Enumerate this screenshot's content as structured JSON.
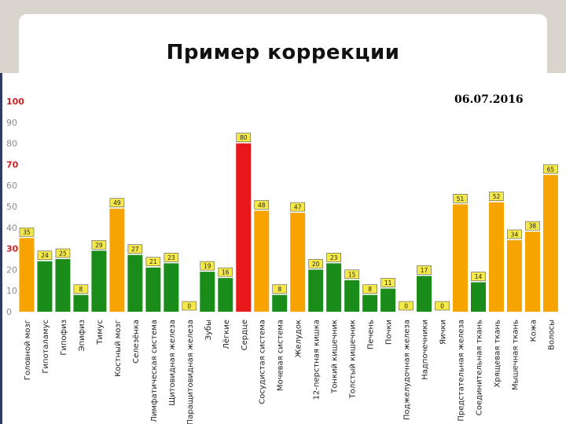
{
  "slide": {
    "title": "Пример коррекции",
    "date": "06.07.2016"
  },
  "colors": {
    "red": "#e8191b",
    "orange": "#f7a400",
    "green": "#1a8c1a",
    "label_bg": "#f5e94a",
    "red_tick": "#cc2222"
  },
  "chart_data": {
    "type": "bar",
    "title": "",
    "xlabel": "",
    "ylabel": "",
    "ylim": [
      0,
      100
    ],
    "yticks": [
      "0",
      "10",
      "20",
      "30",
      "40",
      "50",
      "60",
      "70",
      "80",
      "90",
      "100"
    ],
    "highlight_ticks": [
      "30",
      "70",
      "100"
    ],
    "grid": false,
    "categories": [
      "Головной мозг",
      "Гипоталамус",
      "Гипофиз",
      "Эпифиз",
      "Тимус",
      "Костный мозг",
      "Селезёнка",
      "Лимфатическая система",
      "Щитовидная железа",
      "Паращитовидная железа",
      "Зубы",
      "Лёгкие",
      "Сердце",
      "Сосудистая система",
      "Мочевая система",
      "Желудок",
      "12-перстная кишка",
      "Тонкий кишечник",
      "Толстый кишечник",
      "Печень",
      "Почки",
      "Поджелудочная железа",
      "Надпочечники",
      "Яички",
      "Предстательная железа",
      "Соединительная ткань",
      "Хрящевая ткань",
      "Мышечная ткань",
      "Кожа",
      "Волосы"
    ],
    "values": [
      35,
      24,
      25,
      8,
      29,
      49,
      27,
      21,
      23,
      0,
      19,
      16,
      80,
      48,
      8,
      47,
      20,
      23,
      15,
      8,
      11,
      0,
      17,
      0,
      51,
      14,
      52,
      34,
      38,
      65
    ],
    "value_labels": [
      "35",
      "24",
      "25",
      "8",
      "29",
      "49",
      "27",
      "21",
      "23",
      "0",
      "19",
      "16",
      "80",
      "48",
      "8",
      "47",
      "20",
      "23",
      "15",
      "8",
      "11",
      "0",
      "17",
      "0",
      "51",
      "14",
      "52",
      "34",
      "38",
      "65"
    ],
    "color_thresholds": {
      "green_below": 30,
      "red_at_or_above": 70
    }
  }
}
